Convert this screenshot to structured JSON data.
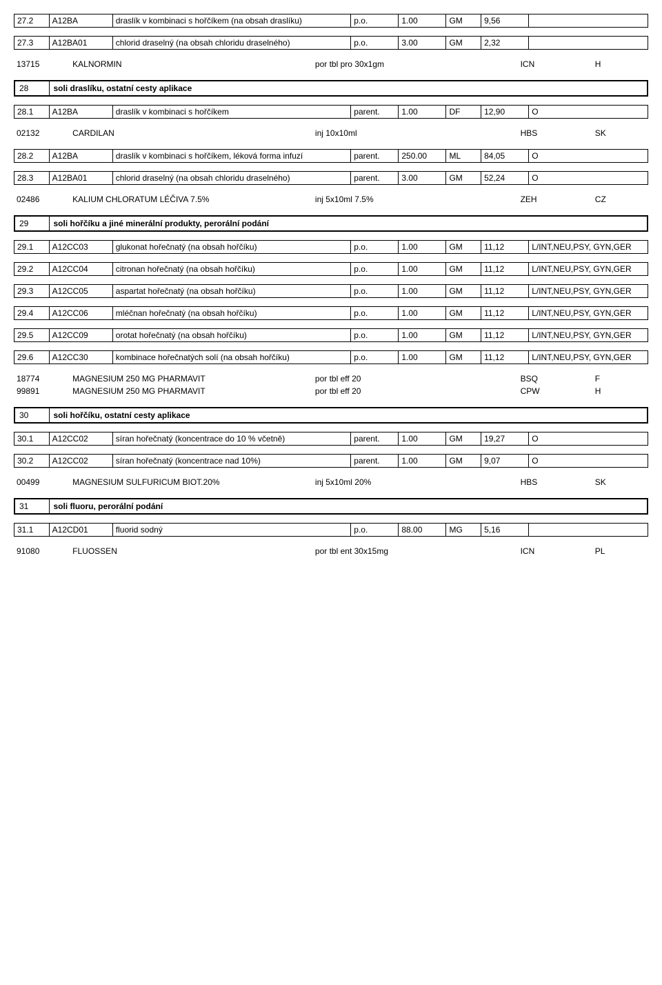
{
  "rows": {
    "r1": {
      "idx": "27.2",
      "code": "A12BA",
      "desc": "draslík v kombinaci s hořčíkem (na obsah draslíku)",
      "form": "p.o.",
      "dose": "1.00",
      "unit": "GM",
      "price": "9,56",
      "note": ""
    },
    "r2": {
      "idx": "27.3",
      "code": "A12BA01",
      "desc": "chlorid draselný (na obsah chloridu draselného)",
      "form": "p.o.",
      "dose": "3.00",
      "unit": "GM",
      "price": "2,32",
      "note": ""
    },
    "r3": {
      "idx": "28.1",
      "code": "A12BA",
      "desc": "draslík v kombinaci s hořčíkem",
      "form": "parent.",
      "dose": "1.00",
      "unit": "DF",
      "price": "12,90",
      "note": "O"
    },
    "r4": {
      "idx": "28.2",
      "code": "A12BA",
      "desc": "draslík v kombinaci s hořčíkem, léková forma infuzí",
      "form": "parent.",
      "dose": "250.00",
      "unit": "ML",
      "price": "84,05",
      "note": "O"
    },
    "r5": {
      "idx": "28.3",
      "code": "A12BA01",
      "desc": "chlorid draselný (na obsah chloridu draselného)",
      "form": "parent.",
      "dose": "3.00",
      "unit": "GM",
      "price": "52,24",
      "note": "O"
    },
    "r6": {
      "idx": "29.1",
      "code": "A12CC03",
      "desc": "glukonat hořečnatý (na obsah hořčíku)",
      "form": "p.o.",
      "dose": "1.00",
      "unit": "GM",
      "price": "11,12",
      "note": "L/INT,NEU,PSY, GYN,GER"
    },
    "r7": {
      "idx": "29.2",
      "code": "A12CC04",
      "desc": "citronan hořečnatý (na obsah hořčíku)",
      "form": "p.o.",
      "dose": "1.00",
      "unit": "GM",
      "price": "11,12",
      "note": "L/INT,NEU,PSY, GYN,GER"
    },
    "r8": {
      "idx": "29.3",
      "code": "A12CC05",
      "desc": "aspartat hořečnatý (na obsah hořčíku)",
      "form": "p.o.",
      "dose": "1.00",
      "unit": "GM",
      "price": "11,12",
      "note": "L/INT,NEU,PSY, GYN,GER"
    },
    "r9": {
      "idx": "29.4",
      "code": "A12CC06",
      "desc": "mléčnan hořečnatý (na obsah hořčíku)",
      "form": "p.o.",
      "dose": "1.00",
      "unit": "GM",
      "price": "11,12",
      "note": "L/INT,NEU,PSY, GYN,GER"
    },
    "r10": {
      "idx": "29.5",
      "code": "A12CC09",
      "desc": "orotat hořečnatý (na obsah hořčíku)",
      "form": "p.o.",
      "dose": "1.00",
      "unit": "GM",
      "price": "11,12",
      "note": "L/INT,NEU,PSY, GYN,GER"
    },
    "r11": {
      "idx": "29.6",
      "code": "A12CC30",
      "desc": "kombinace hořečnatých solí (na obsah hořčíku)",
      "form": "p.o.",
      "dose": "1.00",
      "unit": "GM",
      "price": "11,12",
      "note": "L/INT,NEU,PSY, GYN,GER"
    },
    "r12": {
      "idx": "30.1",
      "code": "A12CC02",
      "desc": "síran hořečnatý (koncentrace do 10 % včetně)",
      "form": "parent.",
      "dose": "1.00",
      "unit": "GM",
      "price": "19,27",
      "note": "O"
    },
    "r13": {
      "idx": "30.2",
      "code": "A12CC02",
      "desc": "síran hořečnatý (koncentrace nad 10%)",
      "form": "parent.",
      "dose": "1.00",
      "unit": "GM",
      "price": "9,07",
      "note": "O"
    },
    "r14": {
      "idx": "31.1",
      "code": "A12CD01",
      "desc": "fluorid sodný",
      "form": "p.o.",
      "dose": "88.00",
      "unit": "MG",
      "price": "5,16",
      "note": ""
    }
  },
  "secs": {
    "s28": {
      "num": "28",
      "title": "soli draslíku, ostatní cesty aplikace"
    },
    "s29": {
      "num": "29",
      "title": "soli hořčíku a jiné minerální produkty, perorální podání"
    },
    "s30": {
      "num": "30",
      "title": "soli hořčíku, ostatní cesty aplikace"
    },
    "s31": {
      "num": "31",
      "title": "soli fluoru, perorální podání"
    }
  },
  "free": {
    "f1": {
      "c1": "13715",
      "c2": "KALNORMIN",
      "c3": "por tbl pro 30x1gm",
      "c4": "ICN",
      "c5": "H"
    },
    "f2": {
      "c1": "02132",
      "c2": "CARDILAN",
      "c3": "inj 10x10ml",
      "c4": "HBS",
      "c5": "SK"
    },
    "f3": {
      "c1": "02486",
      "c2": "KALIUM CHLORATUM LÉČIVA 7.5%",
      "c3": "inj 5x10ml 7.5%",
      "c4": "ZEH",
      "c5": "CZ"
    },
    "f4": {
      "c1": "18774",
      "c2": "MAGNESIUM 250 MG PHARMAVIT",
      "c3": "por tbl eff 20",
      "c4": "BSQ",
      "c5": "F"
    },
    "f5": {
      "c1": "99891",
      "c2": "MAGNESIUM 250 MG PHARMAVIT",
      "c3": "por tbl eff 20",
      "c4": "CPW",
      "c5": "H"
    },
    "f6": {
      "c1": "00499",
      "c2": "MAGNESIUM SULFURICUM BIOT.20%",
      "c3": "inj 5x10ml 20%",
      "c4": "HBS",
      "c5": "SK"
    },
    "f7": {
      "c1": "91080",
      "c2": "FLUOSSEN",
      "c3": "por tbl ent 30x15mg",
      "c4": "ICN",
      "c5": "PL"
    }
  }
}
